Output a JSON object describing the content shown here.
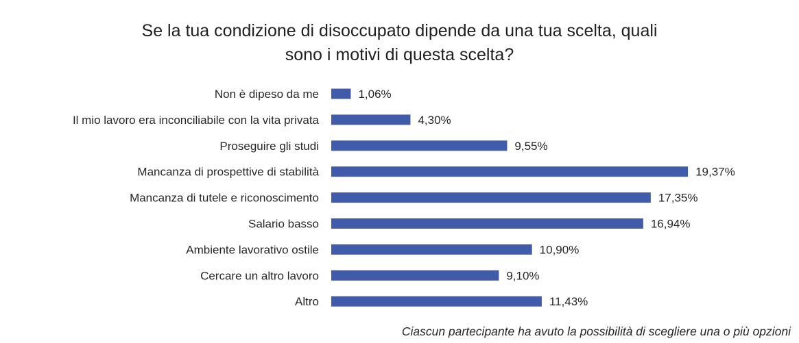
{
  "chart_data": {
    "type": "bar",
    "orientation": "horizontal",
    "title": "Se la tua condizione di disoccupato dipende da una tua scelta, quali sono i motivi di questa scelta?",
    "title_lines": [
      "Se la tua condizione di disoccupato dipende da una tua scelta, quali",
      "sono i motivi di questa scelta?"
    ],
    "categories": [
      "Non è dipeso da me",
      "Il mio lavoro era inconciliabile con la vita privata",
      "Proseguire gli studi",
      "Mancanza di prospettive di stabilità",
      "Mancanza di tutele e riconoscimento",
      "Salario basso",
      "Ambiente lavorativo ostile",
      "Cercare un altro lavoro",
      "Altro"
    ],
    "values": [
      1.06,
      4.3,
      9.55,
      19.37,
      17.35,
      16.94,
      10.9,
      9.1,
      11.43
    ],
    "value_labels": [
      "1,06%",
      "4,30%",
      "9,55%",
      "19,37%",
      "17,35%",
      "16,94%",
      "10,90%",
      "9,10%",
      "11,43%"
    ],
    "xlabel": "",
    "ylabel": "",
    "grid": false,
    "legend": "none",
    "bar_color": "#3f5ba9",
    "footnote": "Ciascun partecipante ha avuto la possibilità di scegliere una o più opzioni"
  }
}
